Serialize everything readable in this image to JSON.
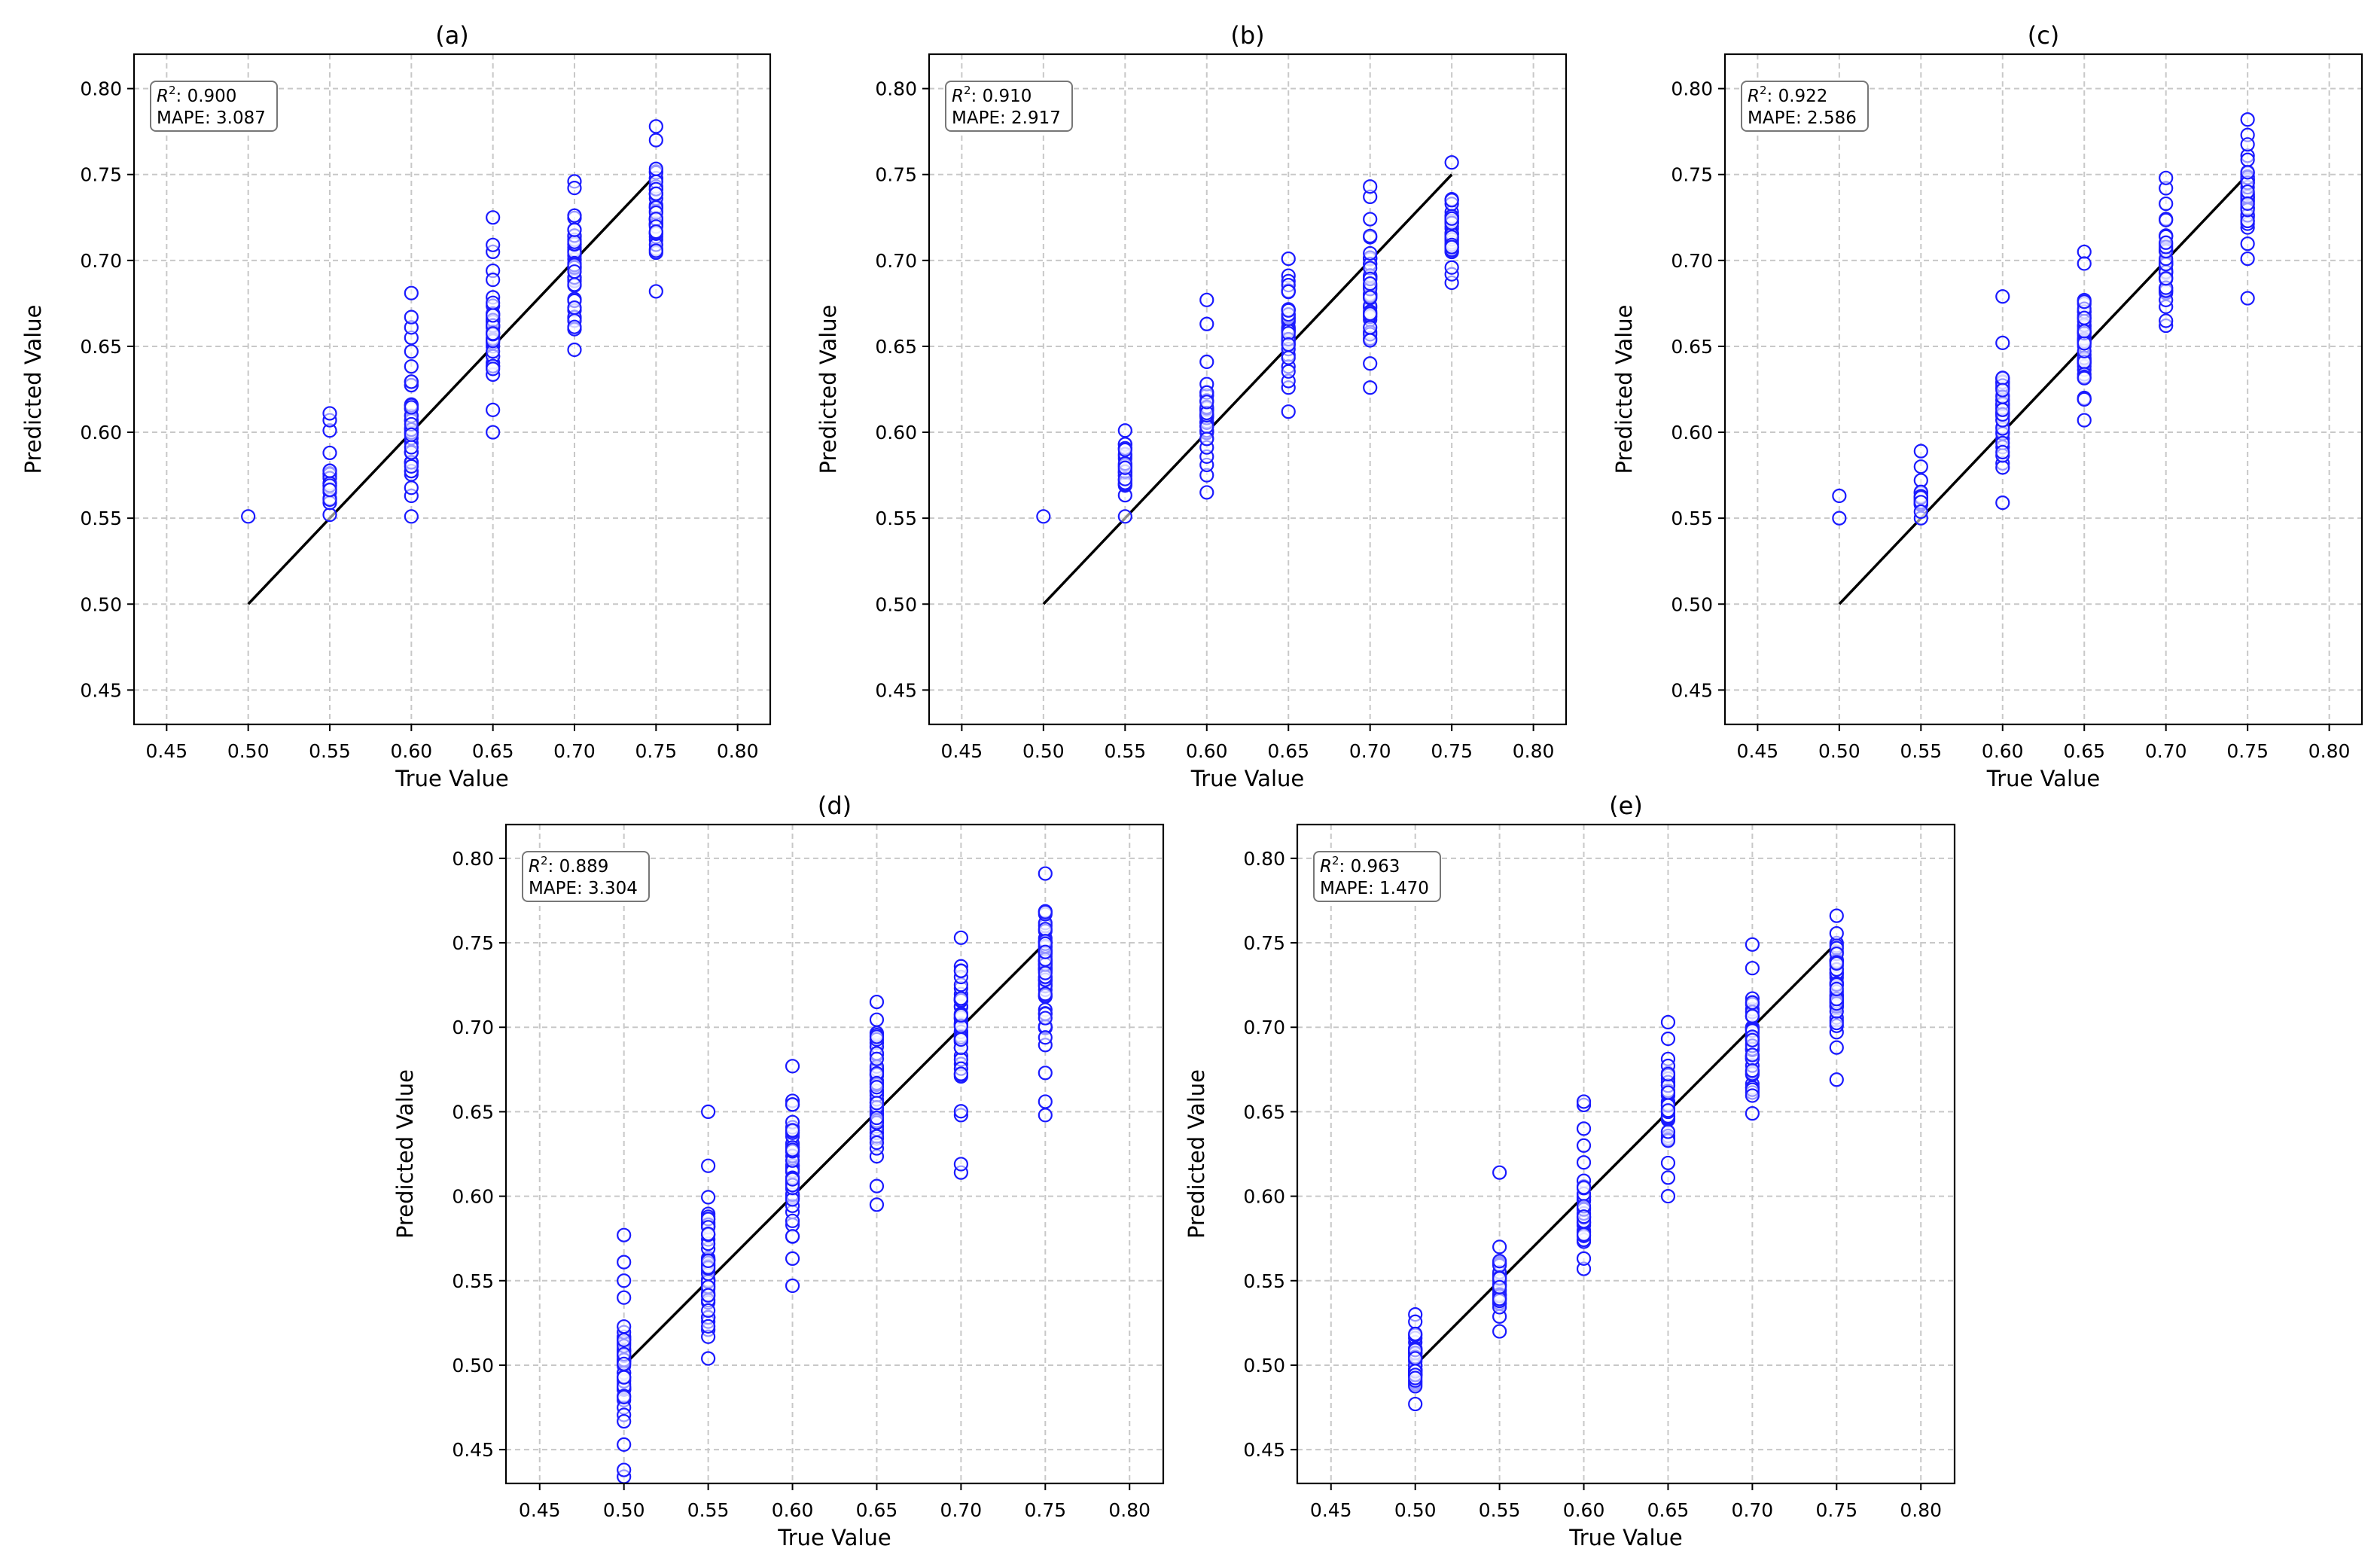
{
  "chart_data": [
    {
      "type": "scatter",
      "title": "(a)",
      "xlabel": "True Value",
      "ylabel": "Predicted Value",
      "xlim": [
        0.43,
        0.82
      ],
      "ylim": [
        0.43,
        0.82
      ],
      "xticks": [
        0.45,
        0.5,
        0.55,
        0.6,
        0.65,
        0.7,
        0.75,
        0.8
      ],
      "yticks": [
        0.45,
        0.5,
        0.55,
        0.6,
        0.65,
        0.7,
        0.75,
        0.8
      ],
      "xtick_labels": [
        "0.45",
        "0.50",
        "0.55",
        "0.60",
        "0.65",
        "0.70",
        "0.75",
        "0.80"
      ],
      "ytick_labels": [
        "0.45",
        "0.50",
        "0.55",
        "0.60",
        "0.65",
        "0.70",
        "0.75",
        "0.80"
      ],
      "grid": true,
      "marker_color": "#1a1aff",
      "line_color": "#000000",
      "reference_line": {
        "x": [
          0.5,
          0.75
        ],
        "y": [
          0.5,
          0.75
        ]
      },
      "annotation": {
        "r2_label": "R",
        "r2_sup": "2",
        "r2_value": ": 0.900",
        "mape": "MAPE: 3.087"
      },
      "points": [
        {
          "x": 0.5,
          "range": [
            0.551,
            0.551
          ],
          "extras": [],
          "n": 1
        },
        {
          "x": 0.55,
          "range": [
            0.552,
            0.588
          ],
          "extras": [
            0.601,
            0.607,
            0.611
          ],
          "n": 22
        },
        {
          "x": 0.6,
          "range": [
            0.563,
            0.647
          ],
          "extras": [
            0.551,
            0.655,
            0.661,
            0.667,
            0.681
          ],
          "n": 40
        },
        {
          "x": 0.65,
          "range": [
            0.613,
            0.694
          ],
          "extras": [
            0.6,
            0.705,
            0.709,
            0.725
          ],
          "n": 38
        },
        {
          "x": 0.7,
          "range": [
            0.648,
            0.746
          ],
          "extras": [],
          "n": 45
        },
        {
          "x": 0.75,
          "range": [
            0.682,
            0.77
          ],
          "extras": [
            0.778
          ],
          "n": 45
        }
      ]
    },
    {
      "type": "scatter",
      "title": "(b)",
      "xlabel": "True Value",
      "ylabel": "Predicted Value",
      "xlim": [
        0.43,
        0.82
      ],
      "ylim": [
        0.43,
        0.82
      ],
      "xticks": [
        0.45,
        0.5,
        0.55,
        0.6,
        0.65,
        0.7,
        0.75,
        0.8
      ],
      "yticks": [
        0.45,
        0.5,
        0.55,
        0.6,
        0.65,
        0.7,
        0.75,
        0.8
      ],
      "xtick_labels": [
        "0.45",
        "0.50",
        "0.55",
        "0.60",
        "0.65",
        "0.70",
        "0.75",
        "0.80"
      ],
      "ytick_labels": [
        "0.45",
        "0.50",
        "0.55",
        "0.60",
        "0.65",
        "0.70",
        "0.75",
        "0.80"
      ],
      "grid": true,
      "marker_color": "#1a1aff",
      "line_color": "#000000",
      "reference_line": {
        "x": [
          0.5,
          0.75
        ],
        "y": [
          0.5,
          0.75
        ]
      },
      "annotation": {
        "r2_label": "R",
        "r2_sup": "2",
        "r2_value": ": 0.910",
        "mape": "MAPE: 2.917"
      },
      "points": [
        {
          "x": 0.5,
          "range": [
            0.551,
            0.551
          ],
          "extras": [],
          "n": 1
        },
        {
          "x": 0.55,
          "range": [
            0.551,
            0.601
          ],
          "extras": [],
          "n": 28
        },
        {
          "x": 0.6,
          "range": [
            0.575,
            0.641
          ],
          "extras": [
            0.565,
            0.663,
            0.677
          ],
          "n": 40
        },
        {
          "x": 0.65,
          "range": [
            0.626,
            0.701
          ],
          "extras": [
            0.612
          ],
          "n": 40
        },
        {
          "x": 0.7,
          "range": [
            0.64,
            0.724
          ],
          "extras": [
            0.626,
            0.737,
            0.743
          ],
          "n": 40
        },
        {
          "x": 0.75,
          "range": [
            0.687,
            0.757
          ],
          "extras": [],
          "n": 40
        }
      ]
    },
    {
      "type": "scatter",
      "title": "(c)",
      "xlabel": "True Value",
      "ylabel": "Predicted Value",
      "xlim": [
        0.43,
        0.82
      ],
      "ylim": [
        0.43,
        0.82
      ],
      "xticks": [
        0.45,
        0.5,
        0.55,
        0.6,
        0.65,
        0.7,
        0.75,
        0.8
      ],
      "yticks": [
        0.45,
        0.5,
        0.55,
        0.6,
        0.65,
        0.7,
        0.75,
        0.8
      ],
      "xtick_labels": [
        "0.45",
        "0.50",
        "0.55",
        "0.60",
        "0.65",
        "0.70",
        "0.75",
        "0.80"
      ],
      "ytick_labels": [
        "0.45",
        "0.50",
        "0.55",
        "0.60",
        "0.65",
        "0.70",
        "0.75",
        "0.80"
      ],
      "grid": true,
      "marker_color": "#1a1aff",
      "line_color": "#000000",
      "reference_line": {
        "x": [
          0.5,
          0.75
        ],
        "y": [
          0.5,
          0.75
        ]
      },
      "annotation": {
        "r2_label": "R",
        "r2_sup": "2",
        "r2_value": ": 0.922",
        "mape": "MAPE: 2.586"
      },
      "points": [
        {
          "x": 0.5,
          "range": [
            0.55,
            0.55
          ],
          "extras": [
            0.563
          ],
          "n": 1
        },
        {
          "x": 0.55,
          "range": [
            0.55,
            0.572
          ],
          "extras": [
            0.58,
            0.589
          ],
          "n": 18
        },
        {
          "x": 0.6,
          "range": [
            0.559,
            0.652
          ],
          "extras": [
            0.679
          ],
          "n": 42
        },
        {
          "x": 0.65,
          "range": [
            0.607,
            0.705
          ],
          "extras": [],
          "n": 45
        },
        {
          "x": 0.7,
          "range": [
            0.662,
            0.733
          ],
          "extras": [
            0.742,
            0.748
          ],
          "n": 40
        },
        {
          "x": 0.75,
          "range": [
            0.701,
            0.773
          ],
          "extras": [
            0.678,
            0.782
          ],
          "n": 45
        }
      ]
    },
    {
      "type": "scatter",
      "title": "(d)",
      "xlabel": "True Value",
      "ylabel": "Predicted Value",
      "xlim": [
        0.43,
        0.82
      ],
      "ylim": [
        0.43,
        0.82
      ],
      "xticks": [
        0.45,
        0.5,
        0.55,
        0.6,
        0.65,
        0.7,
        0.75,
        0.8
      ],
      "yticks": [
        0.45,
        0.5,
        0.55,
        0.6,
        0.65,
        0.7,
        0.75,
        0.8
      ],
      "xtick_labels": [
        "0.45",
        "0.50",
        "0.55",
        "0.60",
        "0.65",
        "0.70",
        "0.75",
        "0.80"
      ],
      "ytick_labels": [
        "0.45",
        "0.50",
        "0.55",
        "0.60",
        "0.65",
        "0.70",
        "0.75",
        "0.80"
      ],
      "grid": true,
      "marker_color": "#1a1aff",
      "line_color": "#000000",
      "reference_line": {
        "x": [
          0.5,
          0.75
        ],
        "y": [
          0.5,
          0.75
        ]
      },
      "annotation": {
        "r2_label": "R",
        "r2_sup": "2",
        "r2_value": ": 0.889",
        "mape": "MAPE: 3.304"
      },
      "points": [
        {
          "x": 0.5,
          "range": [
            0.453,
            0.54
          ],
          "extras": [
            0.434,
            0.438,
            0.55,
            0.561,
            0.577
          ],
          "n": 50
        },
        {
          "x": 0.55,
          "range": [
            0.504,
            0.618
          ],
          "extras": [
            0.65
          ],
          "n": 55
        },
        {
          "x": 0.6,
          "range": [
            0.547,
            0.677
          ],
          "extras": [],
          "n": 55
        },
        {
          "x": 0.65,
          "range": [
            0.606,
            0.715
          ],
          "extras": [
            0.595
          ],
          "n": 55
        },
        {
          "x": 0.7,
          "range": [
            0.648,
            0.753
          ],
          "extras": [
            0.614,
            0.619
          ],
          "n": 55
        },
        {
          "x": 0.75,
          "range": [
            0.673,
            0.791
          ],
          "extras": [
            0.648,
            0.656
          ],
          "n": 60
        }
      ]
    },
    {
      "type": "scatter",
      "title": "(e)",
      "xlabel": "True Value",
      "ylabel": "Predicted Value",
      "xlim": [
        0.43,
        0.82
      ],
      "ylim": [
        0.43,
        0.82
      ],
      "xticks": [
        0.45,
        0.5,
        0.55,
        0.6,
        0.65,
        0.7,
        0.75,
        0.8
      ],
      "yticks": [
        0.45,
        0.5,
        0.55,
        0.6,
        0.65,
        0.7,
        0.75,
        0.8
      ],
      "xtick_labels": [
        "0.45",
        "0.50",
        "0.55",
        "0.60",
        "0.65",
        "0.70",
        "0.75",
        "0.80"
      ],
      "ytick_labels": [
        "0.45",
        "0.50",
        "0.55",
        "0.60",
        "0.65",
        "0.70",
        "0.75",
        "0.80"
      ],
      "grid": true,
      "marker_color": "#1a1aff",
      "line_color": "#000000",
      "reference_line": {
        "x": [
          0.5,
          0.75
        ],
        "y": [
          0.5,
          0.75
        ]
      },
      "annotation": {
        "r2_label": "R",
        "r2_sup": "2",
        "r2_value": ": 0.963",
        "mape": "MAPE: 1.470"
      },
      "points": [
        {
          "x": 0.5,
          "range": [
            0.477,
            0.53
          ],
          "extras": [],
          "n": 40
        },
        {
          "x": 0.55,
          "range": [
            0.52,
            0.57
          ],
          "extras": [
            0.614
          ],
          "n": 35
        },
        {
          "x": 0.6,
          "range": [
            0.557,
            0.62
          ],
          "extras": [
            0.63,
            0.64,
            0.654,
            0.656
          ],
          "n": 40
        },
        {
          "x": 0.65,
          "range": [
            0.611,
            0.703
          ],
          "extras": [
            0.6
          ],
          "n": 45
        },
        {
          "x": 0.7,
          "range": [
            0.649,
            0.735
          ],
          "extras": [
            0.749
          ],
          "n": 45
        },
        {
          "x": 0.75,
          "range": [
            0.688,
            0.766
          ],
          "extras": [
            0.669
          ],
          "n": 45
        }
      ]
    }
  ]
}
